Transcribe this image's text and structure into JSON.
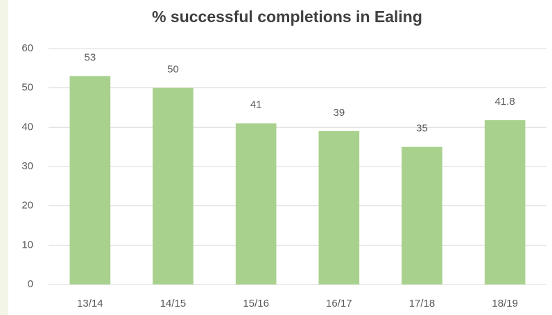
{
  "chart_data": {
    "type": "bar",
    "title": "% successful completions in Ealing",
    "categories": [
      "13/14",
      "14/15",
      "15/16",
      "16/17",
      "17/18",
      "18/19"
    ],
    "values": [
      53,
      50,
      41,
      39,
      35,
      41.8
    ],
    "color": "#a9d18e",
    "ylim": [
      0,
      60
    ],
    "yticks": [
      0,
      10,
      20,
      30,
      40,
      50,
      60
    ],
    "grid": true,
    "data_labels": true
  }
}
